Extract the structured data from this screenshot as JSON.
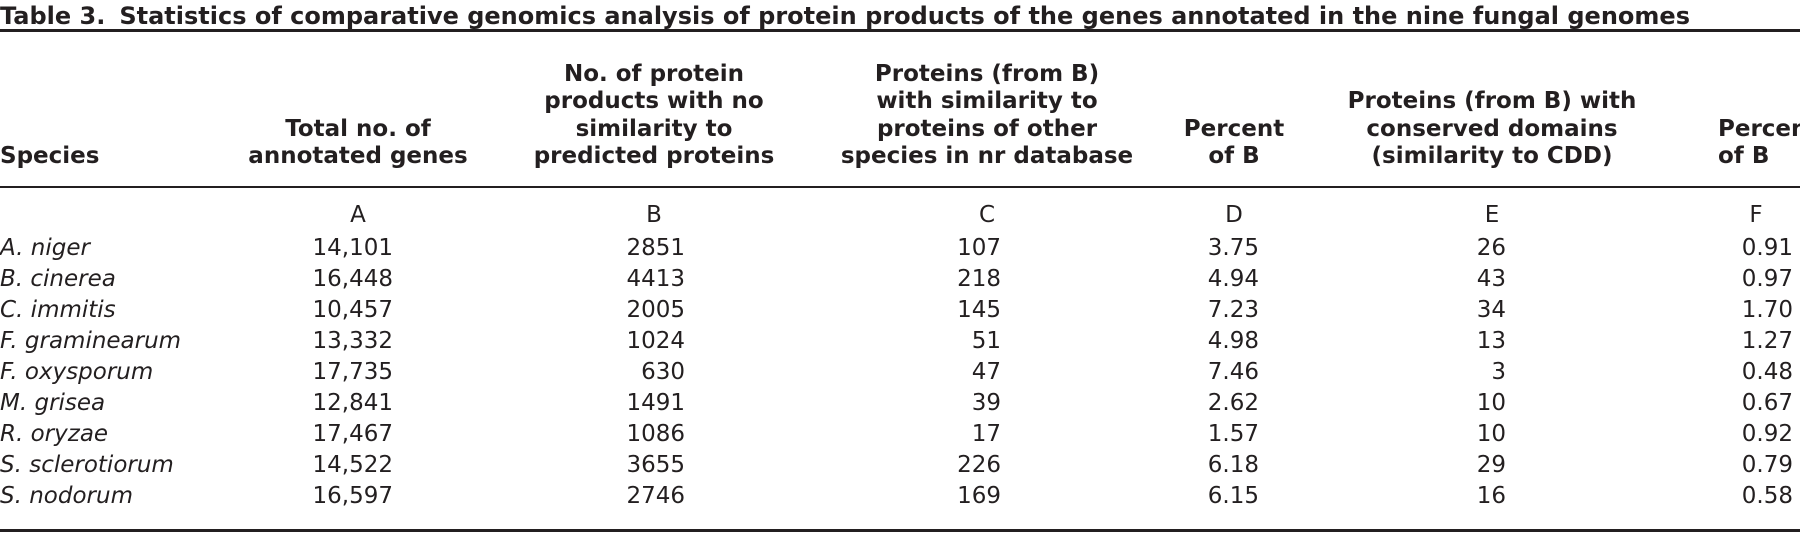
{
  "title": {
    "label": "Table 3.",
    "text": "Statistics of comparative genomics analysis of protein products of the genes annotated in the nine fungal genomes"
  },
  "table": {
    "header": [
      [
        "Species"
      ],
      [
        "Total no. of",
        "annotated genes"
      ],
      [
        "No. of protein",
        "products with no",
        "similarity to",
        "predicted proteins"
      ],
      [
        "Proteins (from B)",
        "with similarity to",
        "proteins of other",
        "species in nr database"
      ],
      [
        "Percent",
        "of B"
      ],
      [
        "Proteins (from B) with",
        "conserved domains",
        "(similarity to CDD)"
      ],
      [
        "Percent",
        "of B"
      ]
    ],
    "column_letters": [
      "A",
      "B",
      "C",
      "D",
      "E",
      "F"
    ],
    "rows": [
      [
        "A. niger",
        "14,101",
        "2851",
        "107",
        "3.75",
        "26",
        "0.91"
      ],
      [
        "B. cinerea",
        "16,448",
        "4413",
        "218",
        "4.94",
        "43",
        "0.97"
      ],
      [
        "C. immitis",
        "10,457",
        "2005",
        "145",
        "7.23",
        "34",
        "1.70"
      ],
      [
        "F. graminearum",
        "13,332",
        "1024",
        "51",
        "4.98",
        "13",
        "1.27"
      ],
      [
        "F. oxysporum",
        "17,735",
        "630",
        "47",
        "7.46",
        "3",
        "0.48"
      ],
      [
        "M. grisea",
        "12,841",
        "1491",
        "39",
        "2.62",
        "10",
        "0.67"
      ],
      [
        "R. oryzae",
        "17,467",
        "1086",
        "17",
        "1.57",
        "10",
        "0.92"
      ],
      [
        "S. sclerotiorum",
        "14,522",
        "3655",
        "226",
        "6.18",
        "29",
        "0.79"
      ],
      [
        "S. nodorum",
        "16,597",
        "2746",
        "169",
        "6.15",
        "16",
        "0.58"
      ]
    ]
  }
}
